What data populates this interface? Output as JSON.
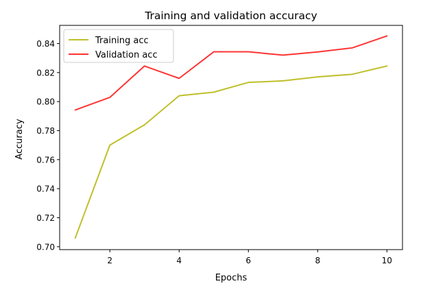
{
  "chart_data": {
    "type": "line",
    "title": "Training and validation accuracy",
    "xlabel": "Epochs",
    "ylabel": "Accuracy",
    "x": [
      1,
      2,
      3,
      4,
      5,
      6,
      7,
      8,
      9,
      10
    ],
    "xlim": [
      0.55,
      10.45
    ],
    "ylim": [
      0.698,
      0.8525
    ],
    "xticks": [
      2,
      4,
      6,
      8,
      10
    ],
    "yticks": [
      0.7,
      0.72,
      0.74,
      0.76,
      0.78,
      0.8,
      0.82,
      0.84
    ],
    "xtick_labels": [
      "2",
      "4",
      "6",
      "8",
      "10"
    ],
    "ytick_labels": [
      "0.70",
      "0.72",
      "0.74",
      "0.76",
      "0.78",
      "0.80",
      "0.82",
      "0.84"
    ],
    "grid": false,
    "legend_position": "top-left",
    "series": [
      {
        "name": "Training acc",
        "color": "#bfbf2b",
        "values": [
          0.706,
          0.77,
          0.784,
          0.804,
          0.8065,
          0.8132,
          0.8143,
          0.817,
          0.8188,
          0.8245
        ]
      },
      {
        "name": "Validation acc",
        "color": "#ff3333",
        "values": [
          0.7942,
          0.8029,
          0.8245,
          0.816,
          0.8343,
          0.8343,
          0.832,
          0.8342,
          0.837,
          0.8452
        ]
      }
    ]
  }
}
